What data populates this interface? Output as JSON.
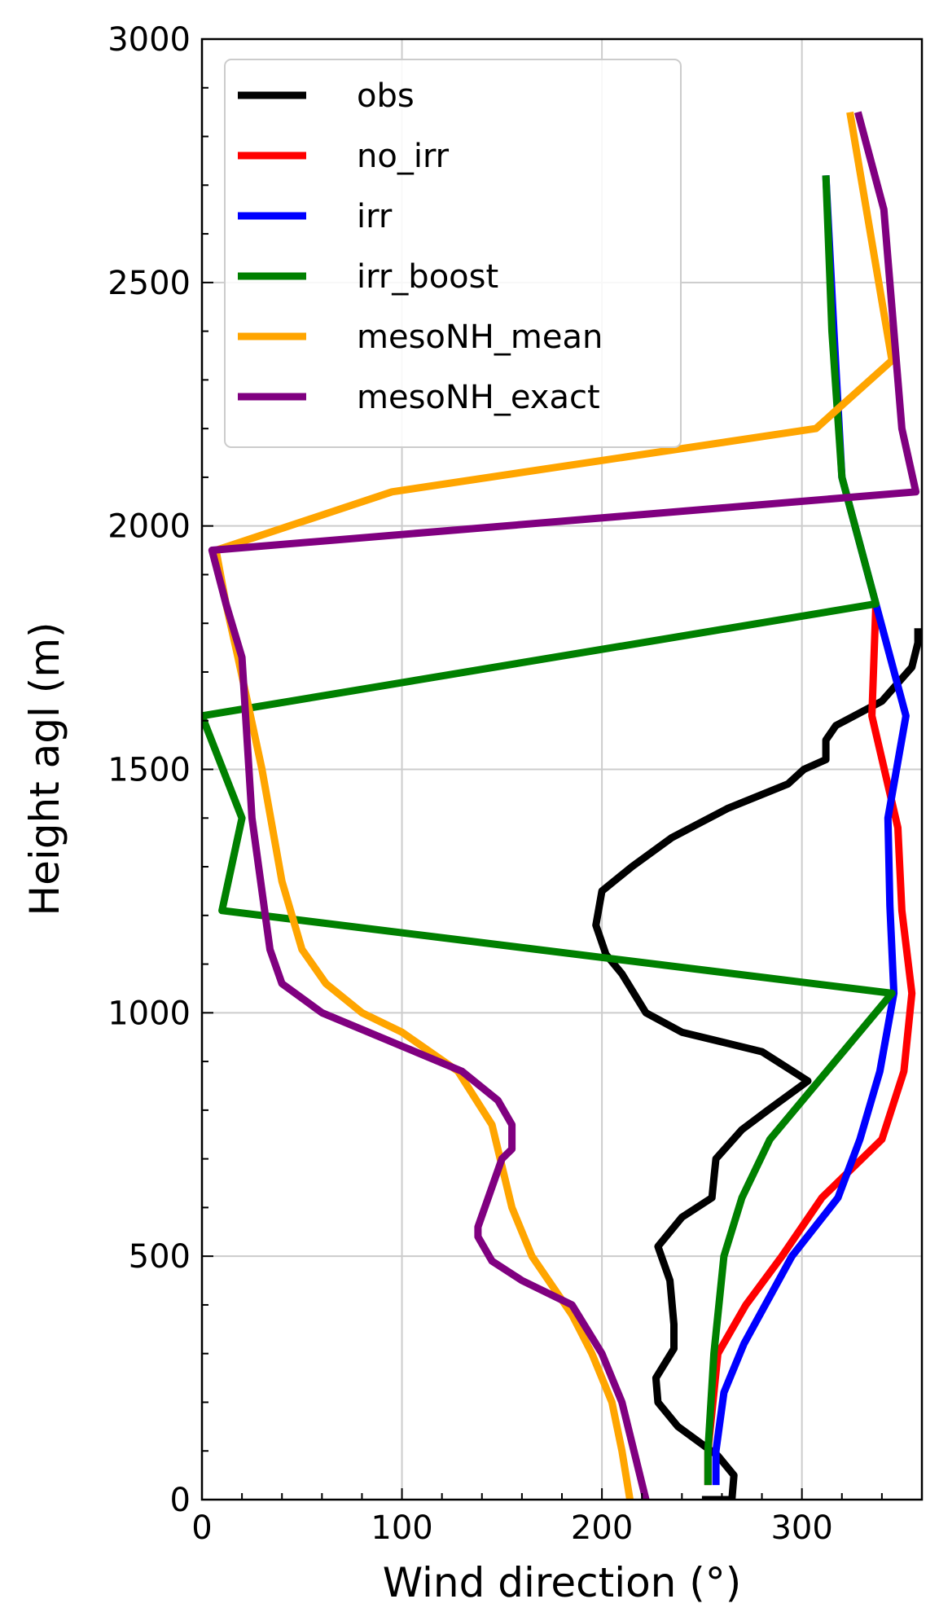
{
  "chart_data": {
    "type": "line",
    "xlabel": "Wind direction (°)",
    "ylabel": "Height agl (m)",
    "xlim": [
      0,
      360
    ],
    "ylim": [
      0,
      3000
    ],
    "xticks": [
      0,
      100,
      200,
      300
    ],
    "yticks": [
      0,
      500,
      1000,
      1500,
      2000,
      2500,
      3000
    ],
    "grid": true,
    "legend_position": "top-left",
    "series": [
      {
        "name": "obs",
        "color": "#000000",
        "points": [
          [
            250,
            0
          ],
          [
            265,
            0
          ],
          [
            266,
            50
          ],
          [
            258,
            90
          ],
          [
            238,
            150
          ],
          [
            228,
            200
          ],
          [
            227,
            250
          ],
          [
            236,
            310
          ],
          [
            236,
            360
          ],
          [
            234,
            450
          ],
          [
            228,
            520
          ],
          [
            240,
            580
          ],
          [
            255,
            620
          ],
          [
            256,
            660
          ],
          [
            257,
            700
          ],
          [
            270,
            760
          ],
          [
            283,
            800
          ],
          [
            303,
            860
          ],
          [
            280,
            920
          ],
          [
            240,
            960
          ],
          [
            222,
            1000
          ],
          [
            210,
            1080
          ],
          [
            202,
            1120
          ],
          [
            197,
            1180
          ],
          [
            200,
            1250
          ],
          [
            215,
            1300
          ],
          [
            235,
            1360
          ],
          [
            263,
            1420
          ],
          [
            293,
            1470
          ],
          [
            301,
            1500
          ],
          [
            312,
            1520
          ],
          [
            312,
            1560
          ],
          [
            317,
            1590
          ],
          [
            340,
            1640
          ],
          [
            355,
            1710
          ],
          [
            358,
            1760
          ],
          [
            358,
            1790
          ]
        ]
      },
      {
        "name": "no_irr",
        "color": "#ff0000",
        "points": [
          [
            253,
            30
          ],
          [
            253,
            100
          ],
          [
            255,
            180
          ],
          [
            258,
            300
          ],
          [
            272,
            400
          ],
          [
            290,
            500
          ],
          [
            310,
            620
          ],
          [
            340,
            740
          ],
          [
            351,
            880
          ],
          [
            355,
            1040
          ],
          [
            350,
            1210
          ],
          [
            348,
            1380
          ],
          [
            335,
            1610
          ],
          [
            337,
            1840
          ]
        ]
      },
      {
        "name": "irr",
        "color": "#0000ff",
        "points": [
          [
            257,
            30
          ],
          [
            257,
            100
          ],
          [
            261,
            220
          ],
          [
            271,
            320
          ],
          [
            295,
            500
          ],
          [
            318,
            620
          ],
          [
            329,
            740
          ],
          [
            339,
            880
          ],
          [
            346,
            1040
          ],
          [
            344,
            1220
          ],
          [
            343,
            1400
          ],
          [
            352,
            1610
          ],
          [
            337,
            1840
          ],
          [
            320,
            2100
          ],
          [
            316,
            2400
          ],
          [
            312,
            2720
          ]
        ]
      },
      {
        "name": "irr_boost",
        "color": "#008000",
        "points": [
          [
            253,
            30
          ],
          [
            253,
            100
          ],
          [
            256,
            300
          ],
          [
            261,
            500
          ],
          [
            270,
            620
          ],
          [
            284,
            740
          ],
          [
            345,
            1040
          ],
          [
            10,
            1210
          ],
          [
            20,
            1400
          ],
          [
            0,
            1610
          ],
          [
            337,
            1840
          ],
          [
            320,
            2100
          ],
          [
            315,
            2400
          ],
          [
            312,
            2720
          ]
        ]
      },
      {
        "name": "mesoNH_mean",
        "color": "#ffa500",
        "points": [
          [
            214,
            0
          ],
          [
            210,
            100
          ],
          [
            205,
            200
          ],
          [
            195,
            300
          ],
          [
            185,
            380
          ],
          [
            165,
            500
          ],
          [
            155,
            600
          ],
          [
            145,
            770
          ],
          [
            128,
            880
          ],
          [
            100,
            960
          ],
          [
            80,
            1000
          ],
          [
            62,
            1060
          ],
          [
            50,
            1130
          ],
          [
            40,
            1270
          ],
          [
            30,
            1500
          ],
          [
            18,
            1730
          ],
          [
            12,
            1840
          ],
          [
            7,
            1950
          ],
          [
            95,
            2070
          ],
          [
            307,
            2200
          ],
          [
            345,
            2340
          ],
          [
            324,
            2850
          ]
        ]
      },
      {
        "name": "mesoNH_exact",
        "color": "#800080",
        "points": [
          [
            222,
            0
          ],
          [
            216,
            100
          ],
          [
            210,
            200
          ],
          [
            200,
            300
          ],
          [
            185,
            400
          ],
          [
            160,
            450
          ],
          [
            145,
            490
          ],
          [
            138,
            540
          ],
          [
            138,
            560
          ],
          [
            150,
            700
          ],
          [
            155,
            720
          ],
          [
            155,
            770
          ],
          [
            148,
            820
          ],
          [
            130,
            880
          ],
          [
            60,
            1000
          ],
          [
            40,
            1060
          ],
          [
            34,
            1130
          ],
          [
            25,
            1400
          ],
          [
            20,
            1730
          ],
          [
            12,
            1840
          ],
          [
            5,
            1950
          ],
          [
            357,
            2070
          ],
          [
            350,
            2200
          ],
          [
            341,
            2650
          ],
          [
            328,
            2850
          ]
        ]
      }
    ]
  }
}
